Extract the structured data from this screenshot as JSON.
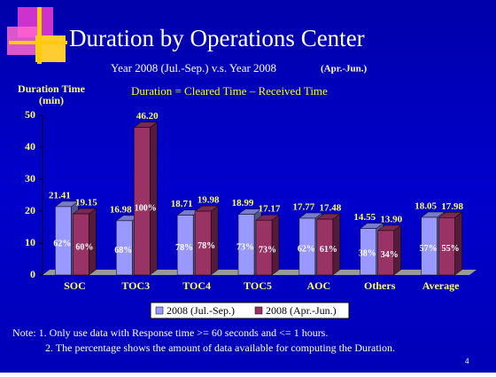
{
  "chart_data": {
    "type": "bar3d",
    "title": "Duration by Operations Center",
    "subtitle": "Year 2008 (Jul.-Sep.)  v.s. Year 2008",
    "subtitle_suffix": "(Apr.-Jun.)",
    "annotation": "Duration = Cleared Time – Received Time",
    "y_label_line1": "Duration Time",
    "y_label_line2": "(min)",
    "categories": [
      "SOC",
      "TOC3",
      "TOC4",
      "TOC5",
      "AOC",
      "Others",
      "Average"
    ],
    "series": [
      {
        "name": "2008 (Jul.-Sep.)",
        "color": "#9999ff",
        "values": [
          21.41,
          16.98,
          18.71,
          18.99,
          17.77,
          14.55,
          18.05
        ],
        "value_labels": [
          "21.41",
          "16.98",
          "18.71",
          "18.99",
          "17.77",
          "14.55",
          "18.05"
        ],
        "percent_labels": [
          "62%",
          "68%",
          "78%",
          "73%",
          "62%",
          "38%",
          "57%"
        ]
      },
      {
        "name": "2008 (Apr.-Jun.)",
        "color": "#993366",
        "values": [
          19.15,
          46.2,
          19.98,
          17.17,
          17.48,
          13.9,
          17.98
        ],
        "value_labels": [
          "19.15",
          "46.20",
          "19.98",
          "17.17",
          "17.48",
          "13.90",
          "17.98"
        ],
        "percent_labels": [
          "60%",
          "100%",
          "78%",
          "73%",
          "61%",
          "34%",
          "55%"
        ]
      }
    ],
    "ylim": [
      0,
      50
    ],
    "yticks": [
      0,
      10,
      20,
      30,
      40,
      50
    ],
    "legend": "bottom",
    "notes": [
      "Note: 1. Only use data with Response time >= 60 seconds and <= 1 hours.",
      "2. The percentage shows the amount of data available for computing the Duration."
    ],
    "page_number": "4"
  }
}
